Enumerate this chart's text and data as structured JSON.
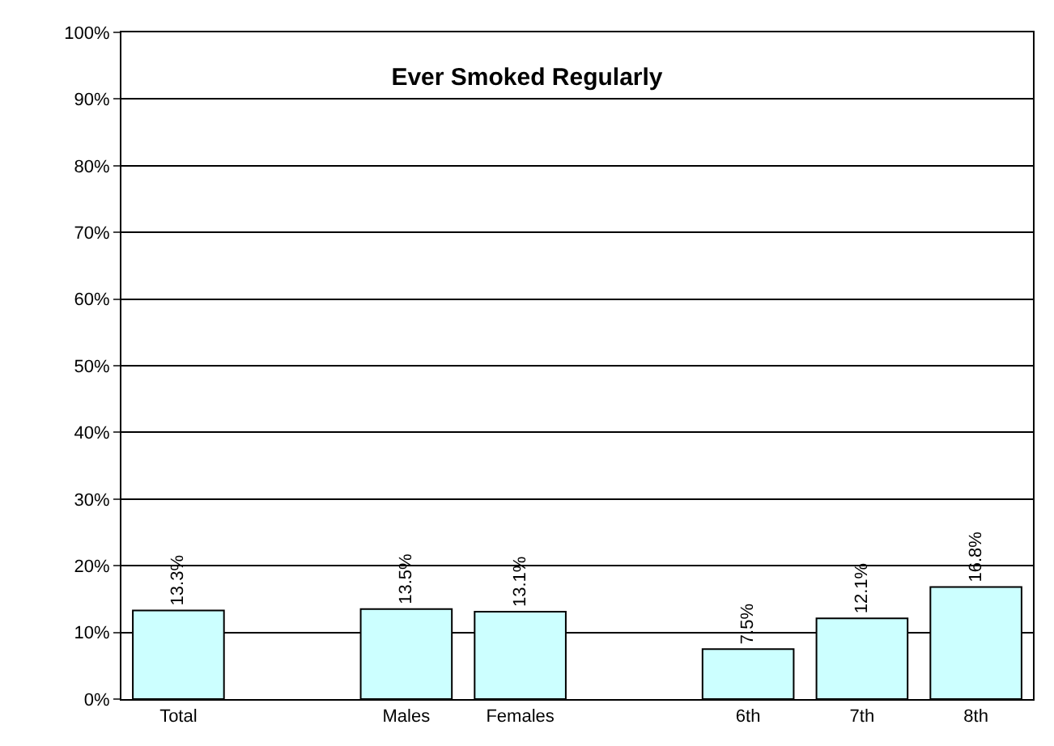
{
  "chart_data": {
    "type": "bar",
    "title": "Ever Smoked Regularly",
    "categories": [
      "Total",
      null,
      "Males",
      "Females",
      null,
      "6th",
      "7th",
      "8th"
    ],
    "values": [
      13.3,
      null,
      13.5,
      13.1,
      null,
      7.5,
      12.1,
      16.8
    ],
    "value_labels": [
      "13.3%",
      null,
      "13.5%",
      "13.1%",
      null,
      "7.5%",
      "12.1%",
      "16.8%"
    ],
    "color": "#ccffff",
    "ylim": [
      0,
      100
    ],
    "yticks": [
      {
        "value": 0,
        "label": "0%"
      },
      {
        "value": 10,
        "label": "10%"
      },
      {
        "value": 20,
        "label": "20%"
      },
      {
        "value": 30,
        "label": "30%"
      },
      {
        "value": 40,
        "label": "40%"
      },
      {
        "value": 50,
        "label": "50%"
      },
      {
        "value": 60,
        "label": "60%"
      },
      {
        "value": 70,
        "label": "70%"
      },
      {
        "value": 80,
        "label": "80%"
      },
      {
        "value": 90,
        "label": "90%"
      },
      {
        "value": 100,
        "label": "100%"
      }
    ],
    "grid": "y"
  }
}
